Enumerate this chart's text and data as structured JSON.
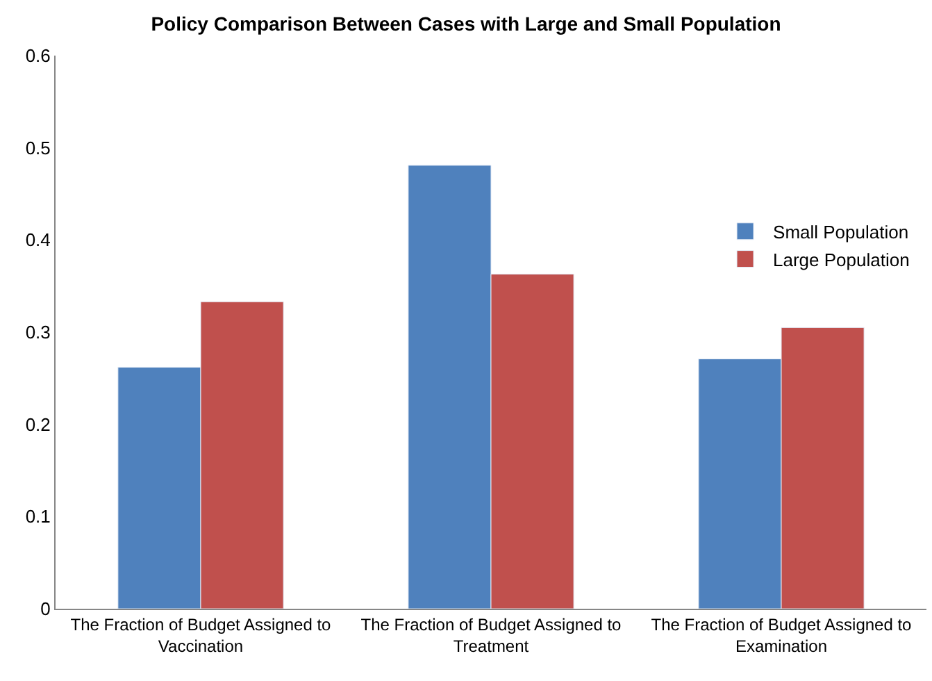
{
  "chart_data": {
    "type": "bar",
    "title": "Policy Comparison Between Cases with Large and Small Population",
    "categories": [
      "The Fraction of Budget Assigned to Vaccination",
      "The Fraction of Budget Assigned to Treatment",
      "The Fraction of Budget Assigned to Examination"
    ],
    "series": [
      {
        "name": "Small Population",
        "color": "#4f81bd",
        "values": [
          0.262,
          0.481,
          0.271
        ]
      },
      {
        "name": "Large Population",
        "color": "#c0504d",
        "values": [
          0.333,
          0.363,
          0.305
        ]
      }
    ],
    "ylim": [
      0,
      0.6
    ],
    "yticks": [
      0,
      0.1,
      0.2,
      0.3,
      0.4,
      0.5,
      0.6
    ],
    "legend": "right"
  }
}
